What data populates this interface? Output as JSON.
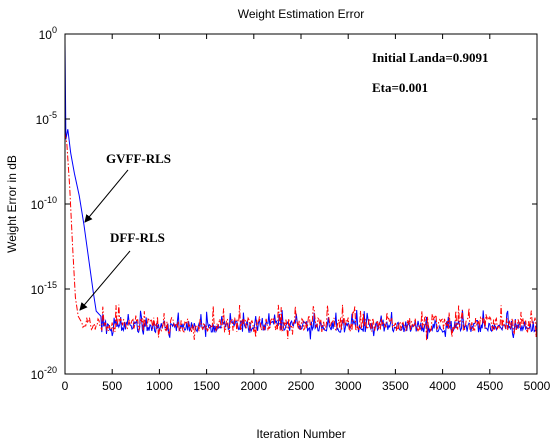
{
  "chart_data": {
    "type": "line",
    "title": "Weight Estimation Error",
    "xlabel": "Iteration Number",
    "ylabel": "Weight Error in dB",
    "xlim": [
      0,
      5000
    ],
    "ylim_exponent": [
      -20,
      0
    ],
    "y_scale": "log",
    "x_ticks": [
      "0",
      "500",
      "1000",
      "1500",
      "2000",
      "2500",
      "3000",
      "3500",
      "4000",
      "4500",
      "5000"
    ],
    "y_tick_mantissa": "10",
    "y_tick_exponents": [
      "0",
      "-5",
      "-10",
      "-15",
      "-20"
    ],
    "grid": false,
    "series": [
      {
        "name": "GVFF-RLS",
        "color": "#0000ff",
        "style": "solid",
        "transient": [
          [
            0,
            -0.5
          ],
          [
            10,
            -6.2
          ],
          [
            30,
            -5.6
          ],
          [
            60,
            -7.0
          ],
          [
            100,
            -8.2
          ],
          [
            150,
            -9.5
          ],
          [
            200,
            -11.2
          ],
          [
            250,
            -13.2
          ],
          [
            300,
            -15.2
          ],
          [
            330,
            -16.3
          ],
          [
            380,
            -16.6
          ]
        ],
        "noise_level": -17.2,
        "noise_amplitude": 0.7
      },
      {
        "name": "DFF-RLS",
        "color": "#ff0000",
        "style": "dashdot",
        "transient": [
          [
            0,
            -5.8
          ],
          [
            20,
            -6.5
          ],
          [
            50,
            -9.0
          ],
          [
            80,
            -12.5
          ],
          [
            110,
            -15.5
          ],
          [
            140,
            -16.6
          ],
          [
            180,
            -17.0
          ]
        ],
        "noise_level": -17.1,
        "noise_amplitude": 0.85
      }
    ],
    "annotations": [
      {
        "text": "Initial Landa=0.9091"
      },
      {
        "text": "Eta=0.001"
      },
      {
        "text": "GVFF-RLS",
        "arrow_to": [
          200,
          -10.6
        ]
      },
      {
        "text": "DFF-RLS",
        "arrow_to": [
          150,
          -15.5
        ]
      }
    ]
  }
}
